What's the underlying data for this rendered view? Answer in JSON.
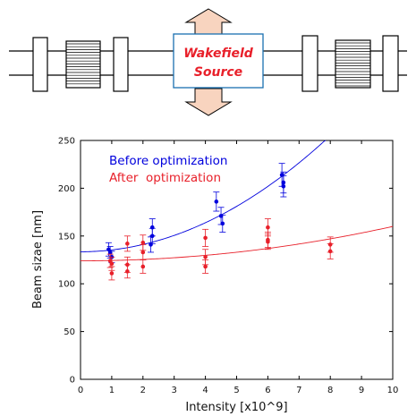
{
  "diagram": {
    "source_label_line1": "Wakefield",
    "source_label_line2": "Source",
    "colors": {
      "label": "#e8202a",
      "box_border": "#1a6fb0",
      "arrow_fill": "#f8d4bf"
    }
  },
  "chart_data": {
    "type": "scatter",
    "title": "",
    "xlabel": "Intensity [x10^9]",
    "ylabel": "Beam sizae [nm]",
    "xlim": [
      0,
      10
    ],
    "ylim": [
      0,
      250
    ],
    "xticks": [
      "0",
      "1",
      "2",
      "3",
      "4",
      "5",
      "6",
      "7",
      "8",
      "9",
      "10"
    ],
    "yticks": [
      "0",
      "50",
      "100",
      "150",
      "200",
      "250"
    ],
    "grid": false,
    "legend_position": "top-left",
    "series": [
      {
        "name": "Before optimization",
        "color": "#0000dd",
        "points": [
          {
            "x": 0.9,
            "y": 136,
            "err": 7
          },
          {
            "x": 0.95,
            "y": 133,
            "err": 6
          },
          {
            "x": 1.0,
            "y": 128,
            "err": 6
          },
          {
            "x": 2.25,
            "y": 141,
            "err": 8
          },
          {
            "x": 2.3,
            "y": 150,
            "err": 8
          },
          {
            "x": 2.3,
            "y": 159,
            "err": 9
          },
          {
            "x": 4.35,
            "y": 186,
            "err": 10
          },
          {
            "x": 4.5,
            "y": 171,
            "err": 9
          },
          {
            "x": 4.55,
            "y": 163,
            "err": 9
          },
          {
            "x": 6.45,
            "y": 214,
            "err": 12
          },
          {
            "x": 6.5,
            "y": 206,
            "err": 11
          },
          {
            "x": 6.5,
            "y": 202,
            "err": 11
          }
        ],
        "fit": {
          "a": 133.5,
          "b": 0,
          "c": 1.9
        }
      },
      {
        "name": "After  optimization",
        "color": "#e8202a",
        "points": [
          {
            "x": 0.95,
            "y": 124,
            "err": 7
          },
          {
            "x": 1.0,
            "y": 121,
            "err": 7
          },
          {
            "x": 1.0,
            "y": 111,
            "err": 7
          },
          {
            "x": 1.5,
            "y": 142,
            "err": 8
          },
          {
            "x": 1.5,
            "y": 120,
            "err": 8
          },
          {
            "x": 1.5,
            "y": 113,
            "err": 7
          },
          {
            "x": 2.0,
            "y": 143,
            "err": 8
          },
          {
            "x": 2.0,
            "y": 133,
            "err": 8
          },
          {
            "x": 2.0,
            "y": 118,
            "err": 7
          },
          {
            "x": 4.0,
            "y": 148,
            "err": 9
          },
          {
            "x": 4.0,
            "y": 128,
            "err": 8
          },
          {
            "x": 4.0,
            "y": 118,
            "err": 7
          },
          {
            "x": 6.0,
            "y": 159,
            "err": 9
          },
          {
            "x": 6.0,
            "y": 146,
            "err": 8
          },
          {
            "x": 6.0,
            "y": 144,
            "err": 8
          },
          {
            "x": 8.0,
            "y": 141,
            "err": 8
          },
          {
            "x": 8.0,
            "y": 134,
            "err": 8
          }
        ],
        "fit": {
          "a": 124,
          "b": 0,
          "c": 0.36
        }
      }
    ]
  }
}
